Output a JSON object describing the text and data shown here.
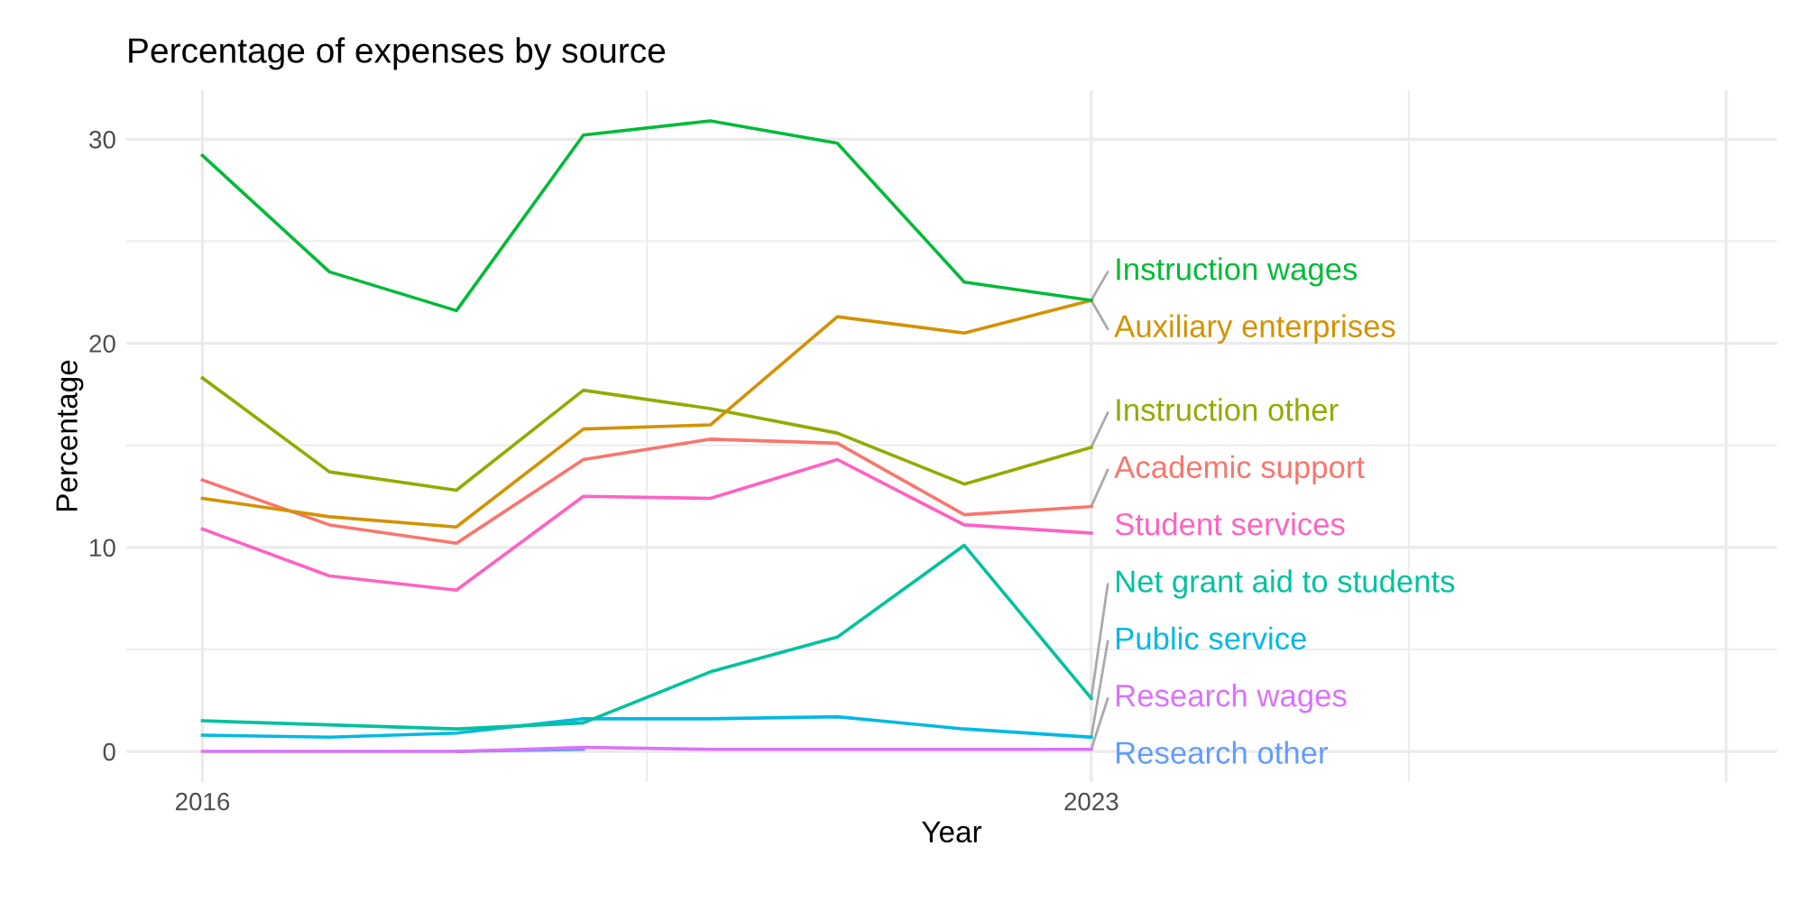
{
  "chart_data": {
    "type": "line",
    "title": "Percentage of expenses by source",
    "xlabel": "Year",
    "ylabel": "Percentage",
    "x": [
      2016,
      2017,
      2018,
      2019,
      2020,
      2021,
      2022,
      2023
    ],
    "series": [
      {
        "name": "Instruction wages",
        "color": "#00ba38",
        "values": [
          29.2,
          23.5,
          21.6,
          30.2,
          30.9,
          29.8,
          23.0,
          22.1
        ]
      },
      {
        "name": "Auxiliary enterprises",
        "color": "#d39200",
        "values": [
          12.4,
          11.5,
          11.0,
          15.8,
          16.0,
          21.3,
          20.5,
          22.1
        ]
      },
      {
        "name": "Instruction other",
        "color": "#93aa00",
        "values": [
          18.3,
          13.7,
          12.8,
          17.7,
          16.8,
          15.6,
          13.1,
          14.9
        ]
      },
      {
        "name": "Academic support",
        "color": "#f8766d",
        "values": [
          13.3,
          11.1,
          10.2,
          14.3,
          15.3,
          15.1,
          11.6,
          12.0
        ]
      },
      {
        "name": "Student services",
        "color": "#ff61c3",
        "values": [
          10.9,
          8.6,
          7.9,
          12.5,
          12.4,
          14.3,
          11.1,
          10.7
        ]
      },
      {
        "name": "Net grant aid to students",
        "color": "#00c19f",
        "values": [
          1.5,
          1.3,
          1.1,
          1.4,
          3.9,
          5.6,
          10.1,
          2.6
        ]
      },
      {
        "name": "Public service",
        "color": "#00b9e3",
        "values": [
          0.8,
          0.7,
          0.9,
          1.6,
          1.6,
          1.7,
          1.1,
          0.7
        ]
      },
      {
        "name": "Research wages",
        "color": "#db72fb",
        "values": [
          0,
          0,
          0,
          0.2,
          0.1,
          0.1,
          0.1,
          0.1
        ]
      },
      {
        "name": "Research other",
        "color": "#619cff",
        "values": [
          null,
          null,
          0,
          0.1,
          null,
          null,
          null,
          null
        ]
      }
    ],
    "xlim": [
      2015.4,
      2028.4
    ],
    "ylim": [
      -1.5,
      32.4
    ],
    "xticks": [
      2016,
      {
        "value": 2019.5,
        "label": null
      },
      2023,
      {
        "value": 2025.5,
        "label": null
      },
      {
        "value": 2028,
        "label": null
      }
    ],
    "yticks": [
      0,
      {
        "value": 5,
        "label": null
      },
      10,
      {
        "value": 15,
        "label": null
      },
      20,
      {
        "value": 25,
        "label": null
      },
      30
    ],
    "grid": true,
    "legend": false,
    "marker": "none",
    "line_style": "solid"
  }
}
